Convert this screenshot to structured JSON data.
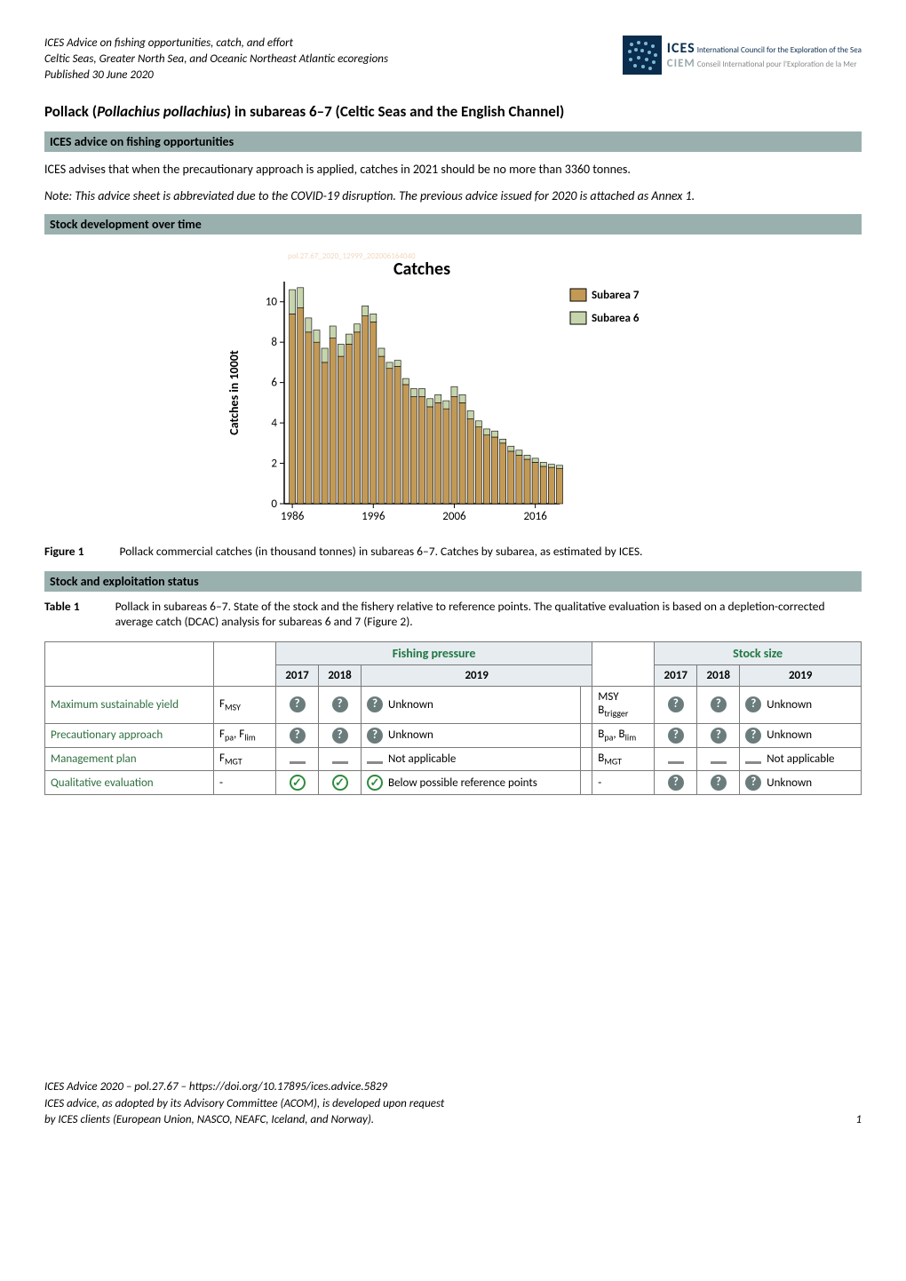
{
  "header": {
    "line1": "ICES Advice on fishing opportunities, catch, and effort",
    "line2": "Celtic Seas, Greater North Sea, and Oceanic Northeast Atlantic ecoregions",
    "line3": "Published 30 June 2020",
    "logo": {
      "ices": "ICES",
      "ices_sub": "International Council for the Exploration of the Sea",
      "ciem": "CIEM",
      "ciem_sub": "Conseil International pour l'Exploration de la Mer",
      "bg": "#0a2d4d",
      "dot_color": "#7fb8d6"
    }
  },
  "title": "Pollack (Pollachius pollachius) in subareas 6–7 (Celtic Seas and the English Channel)",
  "section1": {
    "bar": "ICES advice on fishing opportunities",
    "p1": "ICES advises that when the precautionary approach is applied, catches in 2021 should be no more than 3360 tonnes.",
    "note": "Note: This advice sheet is abbreviated due to the COVID-19 disruption. The previous advice issued for 2020 is attached as Annex 1."
  },
  "section2": {
    "bar": "Stock development over time",
    "chart": {
      "type": "stacked-bar",
      "title": "Catches",
      "title_fontsize": 20,
      "title_fontweight": "bold",
      "watermark": "pol.27.67_2020_12999_202006164040",
      "watermark_color": "#f2d7bf",
      "xaxis": {
        "ticks": [
          1986,
          1996,
          2006,
          2016
        ],
        "min": 1985,
        "max": 2019
      },
      "yaxis": {
        "label": "Catches in 1000t",
        "label_fontweight": "bold",
        "ticks": [
          0,
          2,
          4,
          6,
          8,
          10
        ],
        "min": 0,
        "max": 11
      },
      "legend": [
        {
          "label": "Subarea 7",
          "color": "#c29a56",
          "border": "#000"
        },
        {
          "label": "Subarea 6",
          "color": "#c7d5ad",
          "border": "#000"
        }
      ],
      "years": [
        1986,
        1987,
        1988,
        1989,
        1990,
        1991,
        1992,
        1993,
        1994,
        1995,
        1996,
        1997,
        1998,
        1999,
        2000,
        2001,
        2002,
        2003,
        2004,
        2005,
        2006,
        2007,
        2008,
        2009,
        2010,
        2011,
        2012,
        2013,
        2014,
        2015,
        2016,
        2017,
        2018,
        2019
      ],
      "subarea6": [
        1.2,
        1.0,
        0.7,
        0.6,
        0.7,
        0.6,
        0.6,
        0.5,
        0.4,
        0.5,
        0.4,
        0.4,
        0.3,
        0.3,
        0.3,
        0.4,
        0.4,
        0.4,
        0.4,
        0.4,
        0.5,
        0.4,
        0.4,
        0.3,
        0.3,
        0.3,
        0.2,
        0.25,
        0.25,
        0.2,
        0.2,
        0.2,
        0.15,
        0.15
      ],
      "subarea7": [
        9.4,
        9.7,
        8.5,
        8.0,
        7.0,
        8.2,
        7.3,
        7.9,
        8.5,
        9.3,
        9.0,
        7.3,
        6.7,
        6.8,
        5.9,
        5.3,
        5.3,
        4.8,
        5.0,
        4.7,
        5.3,
        5.0,
        4.2,
        3.8,
        3.4,
        3.3,
        3.0,
        2.6,
        2.4,
        2.2,
        2.05,
        1.85,
        1.8,
        1.75
      ],
      "bar_border": "#000",
      "axis_color": "#000",
      "background": "#ffffff"
    },
    "figure": {
      "label": "Figure 1",
      "caption": "Pollack commercial catches (in thousand tonnes) in subareas 6–7. Catches by subarea, as estimated by ICES."
    }
  },
  "section3": {
    "bar": "Stock and exploitation status",
    "table_intro": {
      "label": "Table 1",
      "caption": "Pollack in subareas 6–7. State of the stock and the fishery relative to reference points. The qualitative evaluation is based on a depletion-corrected average catch (DCAC) analysis for subareas 6 and 7 (Figure 2)."
    },
    "table": {
      "group_fish": "Fishing pressure",
      "group_stock": "Stock size",
      "years": [
        "2017",
        "2018",
        "2019"
      ],
      "year_label_stock": "2019",
      "rows": [
        {
          "label": "Maximum sustainable yield",
          "fsym": "F<sub>MSY</sub>",
          "f": [
            "q",
            "q",
            "q"
          ],
          "f_text": "Unknown",
          "bsym": "MSY B<sub>trigger</sub>",
          "b": [
            "q",
            "q",
            "q"
          ],
          "b_text": "Unknown"
        },
        {
          "label": "Precautionary approach",
          "fsym": "F<sub>pa</sub>, F<sub>lim</sub>",
          "f": [
            "q",
            "q",
            "q"
          ],
          "f_text": "Unknown",
          "bsym": "B<sub>pa</sub>, B<sub>lim</sub>",
          "b": [
            "q",
            "q",
            "q"
          ],
          "b_text": "Unknown"
        },
        {
          "label": "Management plan",
          "fsym": "F<sub>MGT</sub>",
          "f": [
            "dash",
            "dash",
            "dash"
          ],
          "f_text": "Not applicable",
          "bsym": "B<sub>MGT</sub>",
          "b": [
            "dash",
            "dash",
            "dash"
          ],
          "b_text": "Not applicable"
        },
        {
          "label": "Qualitative evaluation",
          "fsym": "-",
          "f": [
            "check",
            "check",
            "check"
          ],
          "f_text": "Below possible reference points",
          "bsym": "-",
          "b": [
            "q",
            "q",
            "q"
          ],
          "b_text": "Unknown"
        }
      ],
      "header_bg": "#e6ecef",
      "row_label_color": "#2e6e3e",
      "border_color": "#7a7a7a"
    }
  },
  "footer": {
    "line1": "ICES Advice 2020 – pol.27.67 – https://doi.org/10.17895/ices.advice.5829",
    "line2": "ICES advice, as adopted by its Advisory Committee (ACOM), is developed upon request",
    "line3": "by ICES clients (European Union, NASCO, NEAFC, Iceland, and Norway).",
    "page": "1"
  }
}
